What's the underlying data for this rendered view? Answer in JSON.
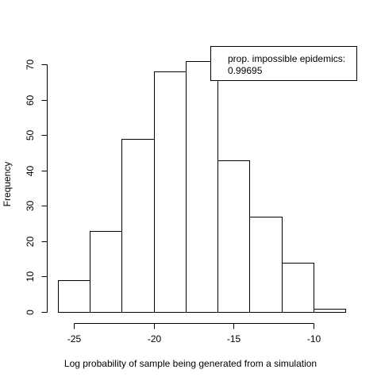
{
  "chart_data": {
    "type": "bar",
    "subtype": "histogram",
    "xlabel": "Log probability of sample being generated from a simulation",
    "ylabel": "Frequency",
    "bins": [
      {
        "from": -26,
        "to": -24,
        "count": 9
      },
      {
        "from": -24,
        "to": -22,
        "count": 23
      },
      {
        "from": -22,
        "to": -20,
        "count": 49
      },
      {
        "from": -20,
        "to": -18,
        "count": 68
      },
      {
        "from": -18,
        "to": -16,
        "count": 71
      },
      {
        "from": -16,
        "to": -14,
        "count": 43
      },
      {
        "from": -14,
        "to": -12,
        "count": 27
      },
      {
        "from": -12,
        "to": -10,
        "count": 14
      },
      {
        "from": -10,
        "to": -8,
        "count": 1
      }
    ],
    "xlim": [
      -26,
      -8
    ],
    "ylim": [
      0,
      75
    ],
    "x_ticks": [
      -25,
      -20,
      -15,
      -10
    ],
    "y_ticks": [
      0,
      10,
      20,
      30,
      40,
      50,
      60,
      70
    ],
    "grid": false,
    "bar_fill": "#ffffff",
    "bar_stroke": "#000000",
    "legend": {
      "position": "top-right",
      "lines": [
        "prop. impossible epidemics:",
        "0.99695"
      ]
    }
  }
}
